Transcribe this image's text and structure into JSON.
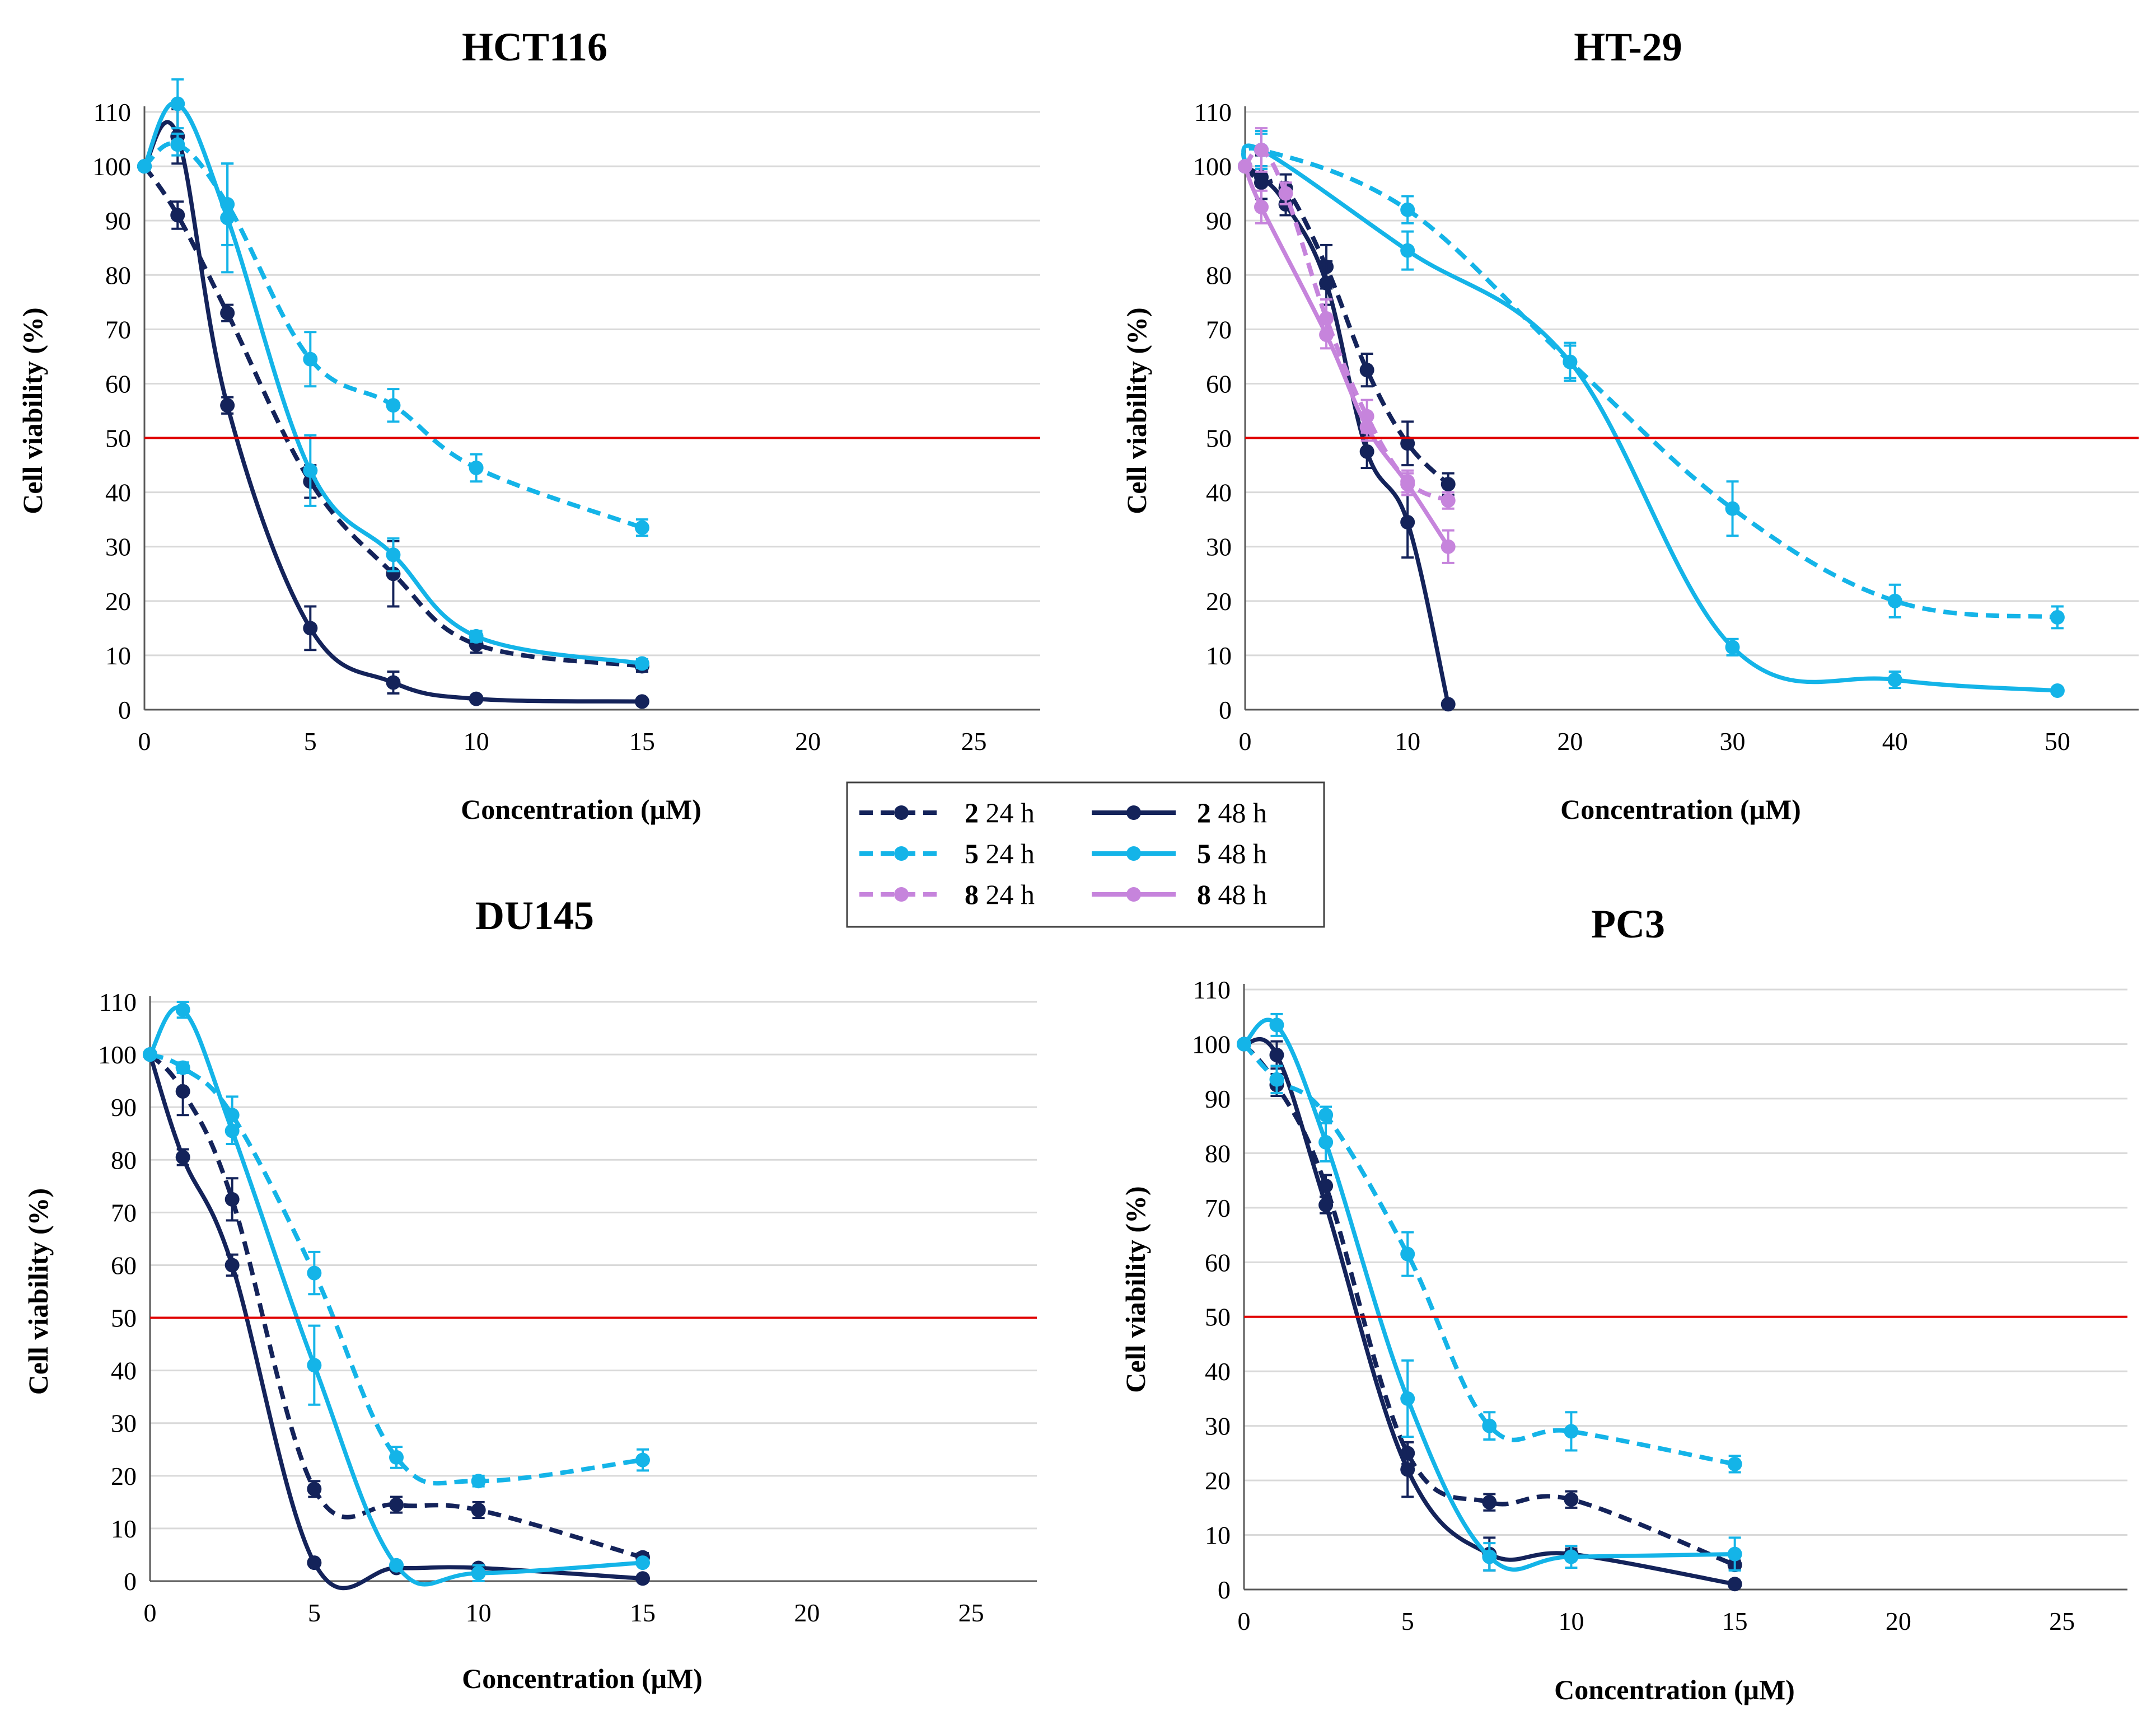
{
  "figure": {
    "xlabel": "Concentration (μM)",
    "ylabel": "Cell viability (%)"
  },
  "legend": {
    "entries": [
      {
        "compound": "2",
        "time": "24 h",
        "color": "#14235a",
        "dashed": true
      },
      {
        "compound": "2",
        "time": "48 h",
        "color": "#14235a",
        "dashed": false
      },
      {
        "compound": "5",
        "time": "24 h",
        "color": "#14b4e8",
        "dashed": true
      },
      {
        "compound": "5",
        "time": "48 h",
        "color": "#14b4e8",
        "dashed": false
      },
      {
        "compound": "8",
        "time": "24 h",
        "color": "#c684dc",
        "dashed": true
      },
      {
        "compound": "8",
        "time": "48 h",
        "color": "#c684dc",
        "dashed": false
      }
    ]
  },
  "colors": {
    "compound_2": "#14235a",
    "compound_5": "#14b4e8",
    "compound_8": "#c684dc",
    "threshold": "#e00000",
    "grid": "#d9d9d9"
  },
  "chart_data": [
    {
      "type": "line",
      "title": "HCT116",
      "xlabel": "Concentration (μM)",
      "ylabel": "Cell viability (%)",
      "xlim": [
        0,
        27
      ],
      "xticks": [
        0,
        5,
        10,
        15,
        20,
        25
      ],
      "ylim": [
        0,
        110
      ],
      "yticks": [
        0,
        10,
        20,
        30,
        40,
        50,
        60,
        70,
        80,
        90,
        100,
        110
      ],
      "threshold": 50,
      "grid": true,
      "series": [
        {
          "name": "2 24 h",
          "compound": "2",
          "time": "24 h",
          "dashed": true,
          "x": [
            0,
            1,
            2.5,
            5,
            7.5,
            10,
            15
          ],
          "y": [
            100,
            91,
            73,
            42,
            25,
            12,
            8
          ],
          "err": [
            0,
            2.5,
            1.5,
            3,
            6,
            1.5,
            1
          ]
        },
        {
          "name": "2 48 h",
          "compound": "2",
          "time": "48 h",
          "dashed": false,
          "x": [
            0,
            1,
            2.5,
            5,
            7.5,
            10,
            15
          ],
          "y": [
            100,
            105.5,
            56,
            15,
            5,
            2,
            1.5
          ],
          "err": [
            0,
            5,
            1.5,
            4,
            2,
            0.5,
            0.3
          ]
        },
        {
          "name": "5 24 h",
          "compound": "5",
          "time": "24 h",
          "dashed": true,
          "x": [
            0,
            1,
            2.5,
            5,
            7.5,
            10,
            15
          ],
          "y": [
            100,
            104,
            93,
            64.5,
            56,
            44.5,
            33.5
          ],
          "err": [
            0,
            2,
            7.5,
            5,
            3,
            2.5,
            1.5
          ]
        },
        {
          "name": "5 48 h",
          "compound": "5",
          "time": "48 h",
          "dashed": false,
          "x": [
            0,
            1,
            2.5,
            5,
            7.5,
            10,
            15
          ],
          "y": [
            100,
            111.5,
            90.5,
            44,
            28.5,
            13.5,
            8.5
          ],
          "err": [
            0,
            4.5,
            10,
            6.5,
            3,
            1,
            0.8
          ]
        }
      ]
    },
    {
      "type": "line",
      "title": "HT-29",
      "xlabel": "Concentration (μM)",
      "ylabel": "Cell viability (%)",
      "xlim": [
        0,
        55
      ],
      "xticks": [
        0,
        10,
        20,
        30,
        40,
        50
      ],
      "ylim": [
        0,
        110
      ],
      "yticks": [
        0,
        10,
        20,
        30,
        40,
        50,
        60,
        70,
        80,
        90,
        100,
        110
      ],
      "threshold": 50,
      "grid": true,
      "series": [
        {
          "name": "2 24 h",
          "compound": "2",
          "time": "24 h",
          "dashed": true,
          "x": [
            0,
            1,
            2.5,
            5,
            7.5,
            10,
            12.5
          ],
          "y": [
            100,
            97,
            96,
            81.5,
            62.5,
            49,
            41.5
          ],
          "err": [
            0,
            3,
            2.5,
            4,
            3,
            4,
            2
          ]
        },
        {
          "name": "2 48 h",
          "compound": "2",
          "time": "48 h",
          "dashed": false,
          "x": [
            0,
            1,
            2.5,
            5,
            7.5,
            10,
            12.5
          ],
          "y": [
            100,
            98,
            93,
            78.5,
            47.5,
            34.5,
            1
          ],
          "err": [
            0,
            4,
            2,
            4,
            3,
            6.5,
            0.5
          ]
        },
        {
          "name": "5 24 h",
          "compound": "5",
          "time": "24 h",
          "dashed": true,
          "x": [
            0,
            1,
            10,
            20,
            30,
            40,
            50
          ],
          "y": [
            100,
            103,
            92,
            64,
            37,
            20,
            17
          ],
          "err": [
            0,
            3.5,
            2.5,
            3.5,
            5,
            3,
            2
          ]
        },
        {
          "name": "5 48 h",
          "compound": "5",
          "time": "48 h",
          "dashed": false,
          "x": [
            0,
            1,
            10,
            20,
            30,
            40,
            50
          ],
          "y": [
            100,
            103,
            84.5,
            64,
            11.5,
            5.5,
            3.5
          ],
          "err": [
            0,
            3,
            3.5,
            3,
            1.5,
            1.5,
            0.5
          ]
        },
        {
          "name": "8 24 h",
          "compound": "8",
          "time": "24 h",
          "dashed": true,
          "x": [
            0,
            1,
            2.5,
            5,
            7.5,
            10,
            12.5
          ],
          "y": [
            100,
            103,
            95,
            72,
            54,
            42,
            38.5
          ],
          "err": [
            0,
            4,
            2,
            3.5,
            3,
            2,
            1.5
          ]
        },
        {
          "name": "8 48 h",
          "compound": "8",
          "time": "48 h",
          "dashed": false,
          "x": [
            0,
            1,
            5,
            7.5,
            10,
            12.5
          ],
          "y": [
            100,
            92.5,
            69,
            52,
            41.5,
            30
          ],
          "err": [
            0,
            3,
            2.5,
            2.5,
            2,
            3
          ]
        }
      ]
    },
    {
      "type": "line",
      "title": "DU145",
      "xlabel": "Concentration (μM)",
      "ylabel": "Cell viability (%)",
      "xlim": [
        0,
        27
      ],
      "xticks": [
        0,
        5,
        10,
        15,
        20,
        25
      ],
      "ylim": [
        0,
        110
      ],
      "yticks": [
        0,
        10,
        20,
        30,
        40,
        50,
        60,
        70,
        80,
        90,
        100,
        110
      ],
      "threshold": 50,
      "grid": true,
      "series": [
        {
          "name": "2 24 h",
          "compound": "2",
          "time": "24 h",
          "dashed": true,
          "x": [
            0,
            1,
            2.5,
            5,
            7.5,
            10,
            15
          ],
          "y": [
            100,
            93,
            72.5,
            17.5,
            14.5,
            13.5,
            4.5
          ],
          "err": [
            0,
            4.5,
            4,
            1.5,
            1.5,
            1.5,
            0.8
          ]
        },
        {
          "name": "2 48 h",
          "compound": "2",
          "time": "48 h",
          "dashed": false,
          "x": [
            0,
            1,
            2.5,
            5,
            7.5,
            10,
            15
          ],
          "y": [
            100,
            80.5,
            60,
            3.5,
            2.5,
            2.5,
            0.5
          ],
          "err": [
            0,
            1.5,
            2,
            0.5,
            0.5,
            0.5,
            0.2
          ]
        },
        {
          "name": "5 24 h",
          "compound": "5",
          "time": "24 h",
          "dashed": true,
          "x": [
            0,
            1,
            2.5,
            5,
            7.5,
            10,
            15
          ],
          "y": [
            100,
            97.5,
            88.5,
            58.5,
            23.5,
            19,
            23
          ],
          "err": [
            0,
            1,
            3.5,
            4,
            2,
            1,
            2
          ]
        },
        {
          "name": "5 48 h",
          "compound": "5",
          "time": "48 h",
          "dashed": false,
          "x": [
            0,
            1,
            2.5,
            5,
            7.5,
            10,
            15
          ],
          "y": [
            100,
            108.5,
            85.5,
            41,
            3,
            1.5,
            3.5
          ],
          "err": [
            0,
            1.5,
            2.5,
            7.5,
            0.5,
            1.5,
            0.5
          ]
        }
      ]
    },
    {
      "type": "line",
      "title": "PC3",
      "xlabel": "Concentration (μM)",
      "ylabel": "Cell viability (%)",
      "xlim": [
        0,
        27
      ],
      "xticks": [
        0,
        5,
        10,
        15,
        20,
        25
      ],
      "ylim": [
        0,
        110
      ],
      "yticks": [
        0,
        10,
        20,
        30,
        40,
        50,
        60,
        70,
        80,
        90,
        100,
        110
      ],
      "threshold": 50,
      "grid": true,
      "series": [
        {
          "name": "2 24 h",
          "compound": "2",
          "time": "24 h",
          "dashed": true,
          "x": [
            0,
            1,
            2.5,
            5,
            7.5,
            10,
            15
          ],
          "y": [
            100,
            92.5,
            74,
            25,
            16,
            16.5,
            4.5
          ],
          "err": [
            0,
            2,
            2,
            2,
            1.5,
            1.5,
            0.8
          ]
        },
        {
          "name": "2 48 h",
          "compound": "2",
          "time": "48 h",
          "dashed": false,
          "x": [
            0,
            1,
            2.5,
            5,
            7.5,
            10,
            15
          ],
          "y": [
            100,
            98,
            70.5,
            22,
            6.5,
            6.5,
            1
          ],
          "err": [
            0,
            2.5,
            1.5,
            5,
            3,
            1,
            0.3
          ]
        },
        {
          "name": "5 24 h",
          "compound": "5",
          "time": "24 h",
          "dashed": true,
          "x": [
            0,
            1,
            2.5,
            5,
            7.5,
            10,
            15
          ],
          "y": [
            100,
            93.5,
            87,
            61.5,
            30,
            29,
            23
          ],
          "err": [
            0,
            2.5,
            1.5,
            4,
            2.5,
            3.5,
            1.5
          ]
        },
        {
          "name": "5 48 h",
          "compound": "5",
          "time": "48 h",
          "dashed": false,
          "x": [
            0,
            1,
            2.5,
            5,
            7.5,
            10,
            15
          ],
          "y": [
            100,
            103.5,
            82,
            35,
            6,
            6,
            6.5
          ],
          "err": [
            0,
            2,
            3.5,
            7,
            2.5,
            2,
            3
          ]
        }
      ]
    }
  ]
}
